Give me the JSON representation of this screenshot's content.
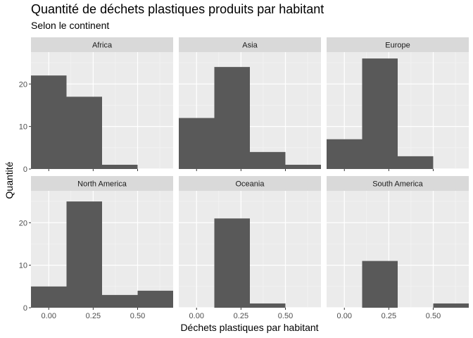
{
  "chart_data": {
    "type": "histogram-facets",
    "title": "Quantité de déchets plastiques produits par habitant",
    "subtitle": "Selon le continent",
    "xlabel": "Déchets plastiques par habitant",
    "ylabel": "Quantité",
    "bin_width": 0.2,
    "bin_centers": [
      0.0,
      0.2,
      0.4,
      0.6
    ],
    "xlim": [
      -0.1,
      0.7
    ],
    "ylim": [
      0,
      27.5
    ],
    "x_ticks": [
      0.0,
      0.25,
      0.5
    ],
    "x_tick_labels": [
      "0.00",
      "0.25",
      "0.50"
    ],
    "y_ticks": [
      0,
      10,
      20
    ],
    "y_tick_labels": [
      "0",
      "10",
      "20"
    ],
    "grid": true,
    "facets": [
      {
        "name": "Africa",
        "values": [
          22,
          17,
          1,
          0
        ]
      },
      {
        "name": "Asia",
        "values": [
          12,
          24,
          4,
          1
        ]
      },
      {
        "name": "Europe",
        "values": [
          7,
          26,
          3,
          0
        ]
      },
      {
        "name": "North America",
        "values": [
          5,
          25,
          3,
          4
        ]
      },
      {
        "name": "Oceania",
        "values": [
          0,
          21,
          1,
          0
        ]
      },
      {
        "name": "South America",
        "values": [
          0,
          11,
          0,
          1
        ]
      }
    ],
    "colors": {
      "panel_background": "#ebebeb",
      "grid_major": "#ffffff",
      "grid_minor": "#f5f5f5",
      "strip_background": "#d9d9d9",
      "bar_fill": "#595959",
      "axis_text": "#4d4d4d"
    }
  }
}
